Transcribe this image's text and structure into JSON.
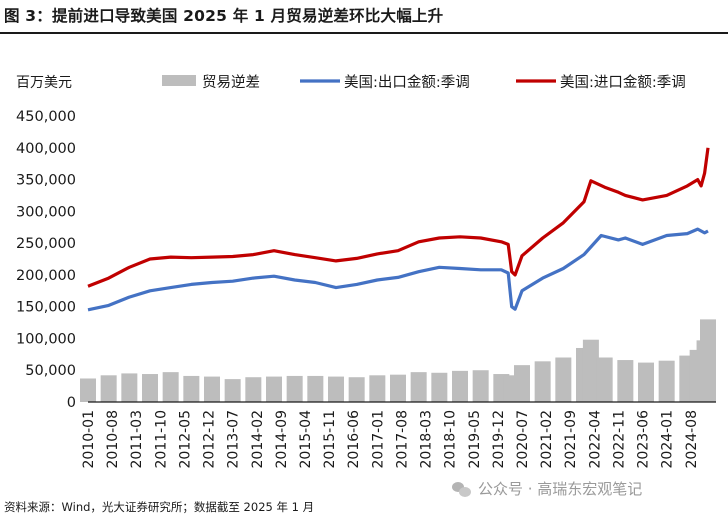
{
  "header": {
    "title": "图 3：提前进口导致美国 2025 年 1 月贸易逆差环比大幅上升"
  },
  "footer": {
    "source": "资料来源：Wind，光大证券研究所；数据截至 2025 年 1 月",
    "watermark": "公众号 · 高瑞东宏观笔记"
  },
  "colors": {
    "deficit_bar": "#bdbdbd",
    "exports_line": "#4472c4",
    "imports_line": "#c00000",
    "axis": "#1a1a1a"
  },
  "chart_data": {
    "type": "bar+line",
    "title": "",
    "xlabel": "",
    "ylabel": "百万美元",
    "ylim": [
      0,
      450000
    ],
    "yticks": [
      0,
      50000,
      100000,
      150000,
      200000,
      250000,
      300000,
      350000,
      400000,
      450000
    ],
    "ytick_labels": [
      "0",
      "50,000",
      "100,000",
      "150,000",
      "200,000",
      "250,000",
      "300,000",
      "350,000",
      "400,000",
      "450,000"
    ],
    "x_range": [
      "2010-01",
      "2025-01"
    ],
    "xtick_labels": [
      "2010-01",
      "2010-08",
      "2011-03",
      "2011-10",
      "2012-05",
      "2012-12",
      "2013-07",
      "2014-02",
      "2014-09",
      "2015-04",
      "2015-11",
      "2016-06",
      "2017-01",
      "2017-08",
      "2018-03",
      "2018-10",
      "2019-05",
      "2019-12",
      "2020-07",
      "2021-02",
      "2021-09",
      "2022-04",
      "2022-11",
      "2023-06",
      "2024-01",
      "2024-08"
    ],
    "legend_position": "top",
    "grid": false,
    "series": [
      {
        "name": "贸易逆差",
        "kind": "bar",
        "color": "#bdbdbd",
        "x": [
          "2010-01",
          "2010-07",
          "2011-01",
          "2011-07",
          "2012-01",
          "2012-07",
          "2013-01",
          "2013-07",
          "2014-01",
          "2014-07",
          "2015-01",
          "2015-07",
          "2016-01",
          "2016-07",
          "2017-01",
          "2017-07",
          "2018-01",
          "2018-07",
          "2019-01",
          "2019-07",
          "2020-01",
          "2020-04",
          "2020-07",
          "2021-01",
          "2021-07",
          "2022-01",
          "2022-03",
          "2022-07",
          "2023-01",
          "2023-07",
          "2024-01",
          "2024-07",
          "2024-10",
          "2024-12",
          "2025-01"
        ],
        "values": [
          37000,
          42000,
          45000,
          44000,
          47000,
          41000,
          40000,
          36000,
          39000,
          40000,
          41000,
          41000,
          40000,
          39000,
          42000,
          43000,
          47000,
          46000,
          49000,
          50000,
          44000,
          42000,
          58000,
          64000,
          70000,
          85000,
          98000,
          70000,
          66000,
          62000,
          65000,
          73000,
          82000,
          97000,
          130000
        ]
      },
      {
        "name": "美国:出口金额:季调",
        "kind": "line",
        "color": "#4472c4",
        "x": [
          "2010-01",
          "2010-07",
          "2011-01",
          "2011-07",
          "2012-01",
          "2012-07",
          "2013-01",
          "2013-07",
          "2014-01",
          "2014-07",
          "2015-01",
          "2015-07",
          "2016-01",
          "2016-07",
          "2017-01",
          "2017-07",
          "2018-01",
          "2018-07",
          "2019-01",
          "2019-07",
          "2020-01",
          "2020-03",
          "2020-04",
          "2020-05",
          "2020-07",
          "2021-01",
          "2021-07",
          "2022-01",
          "2022-06",
          "2022-11",
          "2023-01",
          "2023-06",
          "2024-01",
          "2024-07",
          "2024-10",
          "2024-12",
          "2025-01"
        ],
        "values": [
          145000,
          152000,
          165000,
          175000,
          180000,
          185000,
          188000,
          190000,
          195000,
          198000,
          192000,
          188000,
          180000,
          185000,
          192000,
          196000,
          205000,
          212000,
          210000,
          208000,
          208000,
          203000,
          150000,
          146000,
          175000,
          195000,
          210000,
          232000,
          262000,
          255000,
          258000,
          248000,
          262000,
          265000,
          272000,
          266000,
          269000
        ]
      },
      {
        "name": "美国:进口金额:季调",
        "kind": "line",
        "color": "#c00000",
        "x": [
          "2010-01",
          "2010-07",
          "2011-01",
          "2011-07",
          "2012-01",
          "2012-07",
          "2013-01",
          "2013-07",
          "2014-01",
          "2014-07",
          "2015-01",
          "2015-07",
          "2016-01",
          "2016-07",
          "2017-01",
          "2017-07",
          "2018-01",
          "2018-07",
          "2019-01",
          "2019-07",
          "2020-01",
          "2020-03",
          "2020-04",
          "2020-05",
          "2020-07",
          "2021-01",
          "2021-07",
          "2022-01",
          "2022-03",
          "2022-07",
          "2022-11",
          "2023-01",
          "2023-06",
          "2024-01",
          "2024-07",
          "2024-10",
          "2024-11",
          "2024-12",
          "2025-01"
        ],
        "values": [
          182000,
          195000,
          212000,
          225000,
          228000,
          227000,
          228000,
          229000,
          232000,
          238000,
          232000,
          227000,
          222000,
          226000,
          233000,
          238000,
          252000,
          258000,
          260000,
          258000,
          252000,
          248000,
          205000,
          200000,
          230000,
          258000,
          282000,
          315000,
          348000,
          338000,
          330000,
          325000,
          318000,
          325000,
          340000,
          350000,
          340000,
          360000,
          400000
        ]
      }
    ]
  }
}
